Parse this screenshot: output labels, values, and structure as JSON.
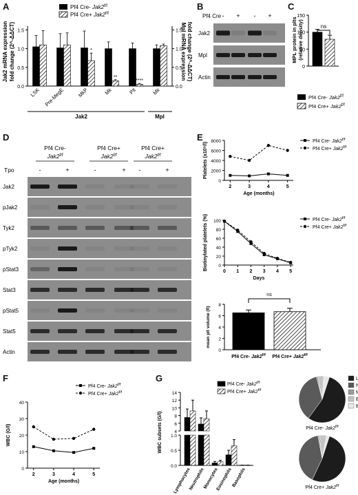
{
  "colors": {
    "black": "#000000",
    "white": "#ffffff",
    "blot_bg": "#8c8c8c",
    "blot_band": "#1a1a1a",
    "pie_ly": "#1c1c1c",
    "pie_ne": "#5a5a5a",
    "pie_mo": "#9a9a9a",
    "pie_eo": "#c4c4c4",
    "pie_ba": "#e8e8e8"
  },
  "panels": {
    "A": "A",
    "B": "B",
    "C": "C",
    "D": "D",
    "E": "E",
    "F": "F",
    "G": "G"
  },
  "geno": {
    "ctrl_prefix": "Pf4 Cre-",
    "ko_prefix": "Pf4 Cre+",
    "gene": "Jak2",
    "sup": "f/f"
  },
  "panelA": {
    "ylabel_left_1": "Jak2 mRNA expression",
    "ylabel_left_2": "fold change (2^-ΔΔCT)",
    "ylabel_right_1": "Mpl mRNA expression",
    "ylabel_right_2": "fold change (2^-ΔΔCT)",
    "group_jak2": "Jak2",
    "group_mpl": "Mpl",
    "yticks": [
      "0.0",
      "0.5",
      "1.0",
      "1.5"
    ],
    "chart_data": {
      "type": "bar",
      "categories": [
        "LSK",
        "Pre-MegE",
        "MkP",
        "Mk",
        "Plt",
        "Mk"
      ],
      "series": [
        {
          "name": "Pf4 Cre- Jak2f/f",
          "values": [
            1.05,
            1.02,
            1.02,
            1.0,
            1.0,
            1.0
          ],
          "err": [
            0.3,
            0.38,
            0.45,
            0.18,
            0.15,
            0.1
          ]
        },
        {
          "name": "Pf4 Cre+ Jak2f/f",
          "values": [
            1.1,
            1.1,
            0.68,
            0.14,
            0.05,
            1.08
          ],
          "err": [
            0.38,
            0.32,
            0.2,
            0.03,
            0.02,
            0.04
          ]
        }
      ],
      "sig": [
        "",
        "",
        "*",
        "**",
        "****",
        ""
      ],
      "ylim": [
        0,
        1.6
      ]
    }
  },
  "panelB": {
    "header": "Pf4 Cre",
    "lanes": [
      "-",
      "+",
      "-",
      "+"
    ],
    "rows": [
      "Jak2",
      "Mpl",
      "Actin"
    ]
  },
  "panelC": {
    "ylabel_1": "MPL protein in plts",
    "ylabel_2": "(relative density)",
    "ns": "ns",
    "yticks": [
      "0",
      "50",
      "100",
      "150"
    ],
    "chart_data": {
      "type": "bar",
      "categories": [
        "Pf4 Cre- Jak2f/f",
        "Pf4 Cre+ Jak2f/f"
      ],
      "values": [
        100,
        79
      ],
      "err": [
        8,
        12
      ],
      "ylim": [
        0,
        150
      ]
    }
  },
  "panelD": {
    "lanes": [
      "-",
      "+",
      "-",
      "+",
      "-",
      "+"
    ],
    "tpo": "Tpo",
    "groups": [
      "Pf4 Cre-",
      "Pf4 Cre+",
      "Pf4 Cre+"
    ],
    "rows": [
      "Jak2",
      "pJak2",
      "Tyk2",
      "pTyk2",
      "pStat3",
      "Stat3",
      "pStat5",
      "Stat5",
      "Actin"
    ]
  },
  "panelE1": {
    "ylabel": "Platelets (x10⁹/l)",
    "xlabel": "Age (months)",
    "xticks": [
      "2",
      "3",
      "4",
      "5"
    ],
    "yticks": [
      "0",
      "2000",
      "4000",
      "6000",
      "8000"
    ],
    "chart_data": {
      "type": "line",
      "x": [
        2,
        3,
        4,
        5
      ],
      "series": [
        {
          "name": "Pf4 Cre- Jak2f/f",
          "values": [
            1000,
            900,
            1300,
            1000
          ]
        },
        {
          "name": "Pf4 Cre+ Jak2f/f",
          "values": [
            4800,
            4000,
            7000,
            6000
          ]
        }
      ],
      "ylim": [
        0,
        8000
      ]
    }
  },
  "panelE2": {
    "ylabel": "Biotinylated platelets (%)",
    "xlabel": "Days",
    "xticks": [
      "0",
      "1",
      "2",
      "3",
      "4",
      "5"
    ],
    "yticks": [
      "0",
      "20",
      "40",
      "60",
      "80",
      "100"
    ],
    "chart_data": {
      "type": "line",
      "x": [
        0,
        1,
        2,
        3,
        4,
        5
      ],
      "series": [
        {
          "name": "Pf4 Cre- Jak2f/f",
          "values": [
            98,
            75,
            48,
            23,
            14,
            5
          ]
        },
        {
          "name": "Pf4 Cre+ Jak2f/f",
          "values": [
            98,
            78,
            52,
            26,
            15,
            6
          ]
        }
      ],
      "ylim": [
        0,
        100
      ]
    }
  },
  "panelE3": {
    "ylabel": "mean plt volume (fl)",
    "ns": "ns",
    "yticks": [
      "0",
      "2",
      "4",
      "6",
      "8"
    ],
    "chart_data": {
      "type": "bar",
      "categories": [
        "Pf4 Cre- Jak2f/f",
        "Pf4 Cre+ Jak2f/f"
      ],
      "values": [
        6.5,
        6.7
      ],
      "err": [
        0.5,
        0.6
      ],
      "ylim": [
        0,
        8
      ]
    }
  },
  "panelF": {
    "ylabel": "WBC (G/l)",
    "xlabel": "Age (months)",
    "xticks": [
      "2",
      "3",
      "4",
      "5"
    ],
    "yticks": [
      "0",
      "10",
      "20",
      "30",
      "40"
    ],
    "chart_data": {
      "type": "line",
      "x": [
        2,
        3,
        4,
        5
      ],
      "series": [
        {
          "name": "Pf4 Cre- Jak2f/f",
          "values": [
            13,
            10.5,
            9.5,
            12
          ]
        },
        {
          "name": "Pf4 Cre+ Jak2f/f",
          "values": [
            25,
            17.5,
            18,
            23.5
          ]
        }
      ],
      "ylim": [
        0,
        40
      ]
    }
  },
  "panelG": {
    "ylabel": "WBC subsets (G/l)",
    "yticks_top": [
      "4",
      "6",
      "8",
      "10",
      "12",
      "14"
    ],
    "yticks_bot": [
      "0.0",
      "0.5",
      "1.0"
    ],
    "chart_data": {
      "type": "bar",
      "categories": [
        "Lymphocytes",
        "Neutrophils",
        "Monocytes",
        "Eosinophils",
        "Basophils"
      ],
      "series": [
        {
          "name": "Pf4 Cre- Jak2f/f",
          "values": [
            7.5,
            5.8,
            0.08,
            0.35,
            0.01
          ]
        },
        {
          "name": "Pf4 Cre+ Jak2f/f",
          "values": [
            9.2,
            7.2,
            0.12,
            0.65,
            0.01
          ]
        }
      ]
    },
    "pie_legend": [
      "Ly",
      "Ne",
      "Mo",
      "Eo",
      "Ba"
    ],
    "pies": [
      {
        "label_prefix": "Pf4 Cre-",
        "values": [
          55,
          36,
          1,
          4,
          4
        ]
      },
      {
        "label_prefix": "Pf4 Cre+",
        "values": [
          52,
          40,
          1,
          5,
          2
        ]
      }
    ]
  }
}
